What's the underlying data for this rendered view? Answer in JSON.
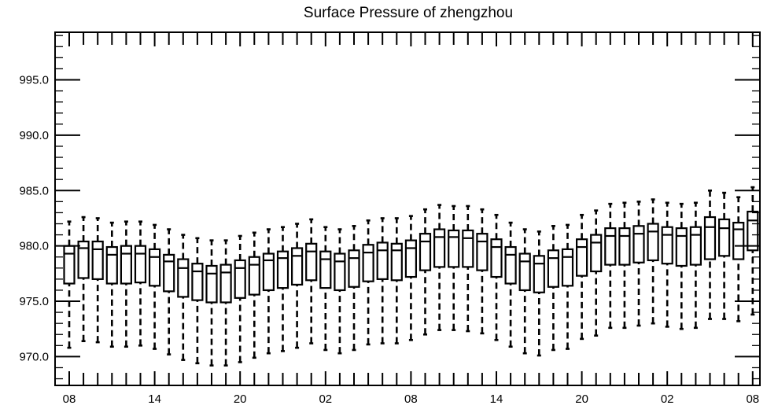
{
  "chart_data": {
    "type": "boxplot",
    "title": "Surface Pressure of zhengzhou",
    "xlabel": "",
    "ylabel": "",
    "ylim": [
      967.4,
      999.3
    ],
    "y_ticks": [
      970.0,
      975.0,
      980.0,
      985.0,
      990.0,
      995.0
    ],
    "y_tick_labels": [
      "970.0",
      "975.0",
      "980.0",
      "985.0",
      "990.0",
      "995.0"
    ],
    "x_ticks": [
      0,
      6,
      12,
      18,
      24,
      30,
      36,
      42,
      48
    ],
    "x_tick_labels": [
      "08",
      "14",
      "20",
      "02",
      "08",
      "14",
      "20",
      "02",
      "08"
    ],
    "x_step_hours": 1,
    "boxes": [
      {
        "x": 0,
        "whisker_low": 970.8,
        "q1": 976.6,
        "median": 979.3,
        "q3": 980.0,
        "whisker_high": 982.2
      },
      {
        "x": 1,
        "whisker_low": 971.4,
        "q1": 977.1,
        "median": 979.8,
        "q3": 980.4,
        "whisker_high": 982.6
      },
      {
        "x": 2,
        "whisker_low": 971.3,
        "q1": 977.0,
        "median": 979.7,
        "q3": 980.4,
        "whisker_high": 982.5
      },
      {
        "x": 3,
        "whisker_low": 970.9,
        "q1": 976.6,
        "median": 979.2,
        "q3": 979.9,
        "whisker_high": 982.1
      },
      {
        "x": 4,
        "whisker_low": 970.9,
        "q1": 976.6,
        "median": 979.3,
        "q3": 980.0,
        "whisker_high": 982.2
      },
      {
        "x": 5,
        "whisker_low": 971.0,
        "q1": 976.7,
        "median": 979.3,
        "q3": 980.0,
        "whisker_high": 982.2
      },
      {
        "x": 6,
        "whisker_low": 970.7,
        "q1": 976.4,
        "median": 979.0,
        "q3": 979.7,
        "whisker_high": 981.9
      },
      {
        "x": 7,
        "whisker_low": 970.2,
        "q1": 975.9,
        "median": 978.6,
        "q3": 979.2,
        "whisker_high": 981.5
      },
      {
        "x": 8,
        "whisker_low": 969.7,
        "q1": 975.4,
        "median": 978.0,
        "q3": 978.8,
        "whisker_high": 981.0
      },
      {
        "x": 9,
        "whisker_low": 969.4,
        "q1": 975.1,
        "median": 977.7,
        "q3": 978.4,
        "whisker_high": 980.7
      },
      {
        "x": 10,
        "whisker_low": 969.2,
        "q1": 974.9,
        "median": 977.5,
        "q3": 978.2,
        "whisker_high": 980.5
      },
      {
        "x": 11,
        "whisker_low": 969.2,
        "q1": 974.9,
        "median": 977.6,
        "q3": 978.3,
        "whisker_high": 980.5
      },
      {
        "x": 12,
        "whisker_low": 969.5,
        "q1": 975.3,
        "median": 978.0,
        "q3": 978.7,
        "whisker_high": 980.9
      },
      {
        "x": 13,
        "whisker_low": 969.9,
        "q1": 975.6,
        "median": 978.3,
        "q3": 979.0,
        "whisker_high": 981.2
      },
      {
        "x": 14,
        "whisker_low": 970.3,
        "q1": 976.0,
        "median": 978.7,
        "q3": 979.3,
        "whisker_high": 981.5
      },
      {
        "x": 15,
        "whisker_low": 970.5,
        "q1": 976.2,
        "median": 978.9,
        "q3": 979.5,
        "whisker_high": 981.7
      },
      {
        "x": 16,
        "whisker_low": 970.8,
        "q1": 976.5,
        "median": 979.1,
        "q3": 979.8,
        "whisker_high": 982.0
      },
      {
        "x": 17,
        "whisker_low": 971.2,
        "q1": 976.9,
        "median": 979.5,
        "q3": 980.2,
        "whisker_high": 982.4
      },
      {
        "x": 18,
        "whisker_low": 970.6,
        "q1": 976.2,
        "median": 978.8,
        "q3": 979.5,
        "whisker_high": 981.7
      },
      {
        "x": 19,
        "whisker_low": 970.3,
        "q1": 976.0,
        "median": 978.6,
        "q3": 979.3,
        "whisker_high": 981.5
      },
      {
        "x": 20,
        "whisker_low": 970.6,
        "q1": 976.3,
        "median": 978.9,
        "q3": 979.6,
        "whisker_high": 981.8
      },
      {
        "x": 21,
        "whisker_low": 971.1,
        "q1": 976.8,
        "median": 979.4,
        "q3": 980.1,
        "whisker_high": 982.3
      },
      {
        "x": 22,
        "whisker_low": 971.2,
        "q1": 977.0,
        "median": 979.6,
        "q3": 980.3,
        "whisker_high": 982.5
      },
      {
        "x": 23,
        "whisker_low": 971.2,
        "q1": 976.9,
        "median": 979.6,
        "q3": 980.2,
        "whisker_high": 982.5
      },
      {
        "x": 24,
        "whisker_low": 971.5,
        "q1": 977.2,
        "median": 979.8,
        "q3": 980.5,
        "whisker_high": 982.7
      },
      {
        "x": 25,
        "whisker_low": 972.0,
        "q1": 977.8,
        "median": 980.4,
        "q3": 981.1,
        "whisker_high": 983.3
      },
      {
        "x": 26,
        "whisker_low": 972.4,
        "q1": 978.1,
        "median": 980.8,
        "q3": 981.5,
        "whisker_high": 983.7
      },
      {
        "x": 27,
        "whisker_low": 972.4,
        "q1": 978.1,
        "median": 980.8,
        "q3": 981.4,
        "whisker_high": 983.6
      },
      {
        "x": 28,
        "whisker_low": 972.3,
        "q1": 978.1,
        "median": 980.7,
        "q3": 981.4,
        "whisker_high": 983.6
      },
      {
        "x": 29,
        "whisker_low": 972.1,
        "q1": 977.8,
        "median": 980.4,
        "q3": 981.1,
        "whisker_high": 983.3
      },
      {
        "x": 30,
        "whisker_low": 971.5,
        "q1": 977.2,
        "median": 979.9,
        "q3": 980.6,
        "whisker_high": 982.8
      },
      {
        "x": 31,
        "whisker_low": 970.9,
        "q1": 976.6,
        "median": 979.2,
        "q3": 979.9,
        "whisker_high": 982.1
      },
      {
        "x": 32,
        "whisker_low": 970.3,
        "q1": 976.0,
        "median": 978.6,
        "q3": 979.3,
        "whisker_high": 981.5
      },
      {
        "x": 33,
        "whisker_low": 970.1,
        "q1": 975.8,
        "median": 978.4,
        "q3": 979.1,
        "whisker_high": 981.3
      },
      {
        "x": 34,
        "whisker_low": 970.6,
        "q1": 976.3,
        "median": 978.9,
        "q3": 979.6,
        "whisker_high": 981.8
      },
      {
        "x": 35,
        "whisker_low": 970.7,
        "q1": 976.4,
        "median": 979.0,
        "q3": 979.7,
        "whisker_high": 981.9
      },
      {
        "x": 36,
        "whisker_low": 971.6,
        "q1": 977.3,
        "median": 979.9,
        "q3": 980.6,
        "whisker_high": 982.8
      },
      {
        "x": 37,
        "whisker_low": 971.9,
        "q1": 977.7,
        "median": 980.3,
        "q3": 981.0,
        "whisker_high": 983.2
      },
      {
        "x": 38,
        "whisker_low": 972.6,
        "q1": 978.3,
        "median": 980.9,
        "q3": 981.6,
        "whisker_high": 983.8
      },
      {
        "x": 39,
        "whisker_low": 972.6,
        "q1": 978.3,
        "median": 980.9,
        "q3": 981.6,
        "whisker_high": 983.9
      },
      {
        "x": 40,
        "whisker_low": 972.8,
        "q1": 978.5,
        "median": 981.1,
        "q3": 981.8,
        "whisker_high": 984.0
      },
      {
        "x": 41,
        "whisker_low": 973.0,
        "q1": 978.7,
        "median": 981.3,
        "q3": 982.0,
        "whisker_high": 984.2
      },
      {
        "x": 42,
        "whisker_low": 972.7,
        "q1": 978.4,
        "median": 981.0,
        "q3": 981.7,
        "whisker_high": 983.9
      },
      {
        "x": 43,
        "whisker_low": 972.5,
        "q1": 978.2,
        "median": 980.9,
        "q3": 981.6,
        "whisker_high": 983.8
      },
      {
        "x": 44,
        "whisker_low": 972.6,
        "q1": 978.3,
        "median": 981.0,
        "q3": 981.7,
        "whisker_high": 983.9
      },
      {
        "x": 45,
        "whisker_low": 973.4,
        "q1": 978.8,
        "median": 981.7,
        "q3": 982.6,
        "whisker_high": 985.0
      },
      {
        "x": 46,
        "whisker_low": 973.4,
        "q1": 979.1,
        "median": 981.6,
        "q3": 982.4,
        "whisker_high": 984.8
      },
      {
        "x": 47,
        "whisker_low": 973.2,
        "q1": 978.8,
        "median": 981.5,
        "q3": 982.1,
        "whisker_high": 984.4
      },
      {
        "x": 48,
        "whisker_low": 973.8,
        "q1": 979.6,
        "median": 982.3,
        "q3": 983.1,
        "whisker_high": 985.3
      }
    ]
  }
}
